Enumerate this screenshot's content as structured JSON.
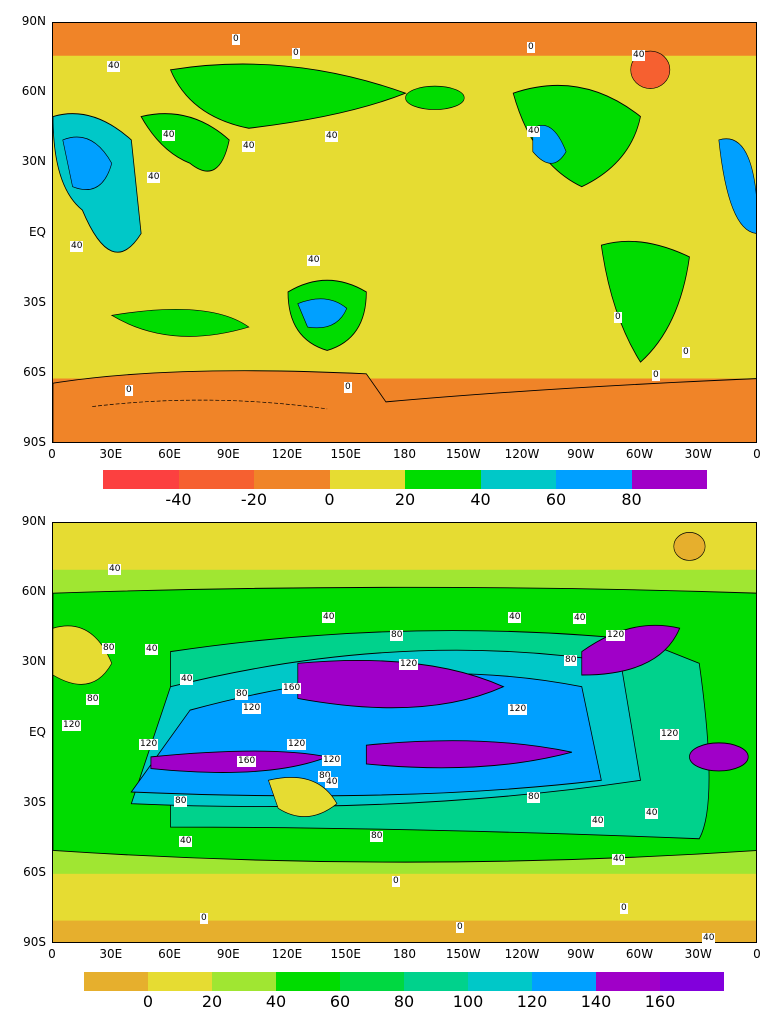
{
  "lat_ticks": [
    "90N",
    "60N",
    "30N",
    "EQ",
    "30S",
    "60S",
    "90S"
  ],
  "lon_ticks": [
    "0",
    "30E",
    "60E",
    "90E",
    "120E",
    "150E",
    "180",
    "150W",
    "120W",
    "90W",
    "60W",
    "30W",
    "0"
  ],
  "top_map": {
    "colorbar": {
      "colors": [
        "#fc4040",
        "#f66030",
        "#f08428",
        "#e6dc32",
        "#00dc00",
        "#00c8c8",
        "#00a0ff",
        "#a000c8"
      ],
      "labels": [
        "-40",
        "-20",
        "0",
        "20",
        "40",
        "60",
        "80"
      ]
    },
    "contour_labels": [
      "0",
      "0",
      "40",
      "40",
      "40",
      "40",
      "40",
      "40",
      "40",
      "0",
      "0",
      "40",
      "40",
      "0",
      "0",
      "0",
      "0"
    ]
  },
  "bottom_map": {
    "colorbar": {
      "colors": [
        "#e6af2d",
        "#e6dc32",
        "#a0e632",
        "#00dc00",
        "#00d841",
        "#00d28c",
        "#00c8c8",
        "#00a0ff",
        "#a000c8",
        "#8200dc"
      ],
      "labels": [
        "0",
        "20",
        "40",
        "60",
        "80",
        "100",
        "120",
        "140",
        "160"
      ]
    },
    "contour_labels": [
      "40",
      "40",
      "40",
      "80",
      "40",
      "40",
      "80",
      "120",
      "40",
      "80",
      "80",
      "160",
      "120",
      "120",
      "120",
      "160",
      "120",
      "80",
      "40",
      "120",
      "120",
      "120",
      "80",
      "80",
      "40",
      "40",
      "40",
      "80",
      "0",
      "0",
      "0",
      "0",
      "40",
      "40",
      "80",
      "120"
    ]
  }
}
